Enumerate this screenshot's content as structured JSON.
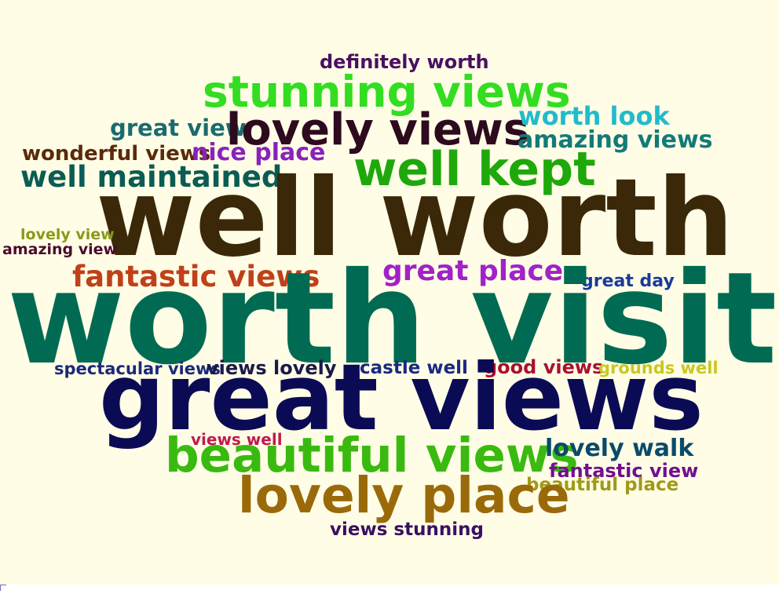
{
  "background_color": "#fffde6",
  "words": [
    {
      "text": "definitely worth",
      "color": "#4a1060"
    },
    {
      "text": "stunning views",
      "color": "#33dd22"
    },
    {
      "text": "great view",
      "color": "#1a6b70"
    },
    {
      "text": "lovely views",
      "color": "#2d0a1e"
    },
    {
      "text": "worth look",
      "color": "#22bbcc"
    },
    {
      "text": "amazing views",
      "color": "#147a78"
    },
    {
      "text": "wonderful views",
      "color": "#5a2a0a"
    },
    {
      "text": "nice place",
      "color": "#8822bb"
    },
    {
      "text": "well kept",
      "color": "#1ea80c"
    },
    {
      "text": "well maintained",
      "color": "#0b5c54"
    },
    {
      "text": "well worth",
      "color": "#3a2808"
    },
    {
      "text": "lovely view",
      "color": "#8a9a1a"
    },
    {
      "text": "amazing view",
      "color": "#4a0a2e"
    },
    {
      "text": "fantastic views",
      "color": "#c0401a"
    },
    {
      "text": "great place",
      "color": "#a022c8"
    },
    {
      "text": "great day",
      "color": "#1a3a9a"
    },
    {
      "text": "worth visit",
      "color": "#006b52"
    },
    {
      "text": "spectacular views",
      "color": "#1a2a7a"
    },
    {
      "text": "views lovely",
      "color": "#1a1a4a"
    },
    {
      "text": "castle well",
      "color": "#1a2a80"
    },
    {
      "text": "good views",
      "color": "#aa1030"
    },
    {
      "text": "grounds well",
      "color": "#c8c820"
    },
    {
      "text": "great views",
      "color": "#0b0b55"
    },
    {
      "text": "views well",
      "color": "#c01a50"
    },
    {
      "text": "beautiful views",
      "color": "#3aba10"
    },
    {
      "text": "lovely walk",
      "color": "#0a4a6a"
    },
    {
      "text": "fantastic view",
      "color": "#701090"
    },
    {
      "text": "beautiful place",
      "color": "#a09a1a"
    },
    {
      "text": "lovely place",
      "color": "#9a6a0a"
    },
    {
      "text": "views stunning",
      "color": "#3a1060"
    }
  ]
}
